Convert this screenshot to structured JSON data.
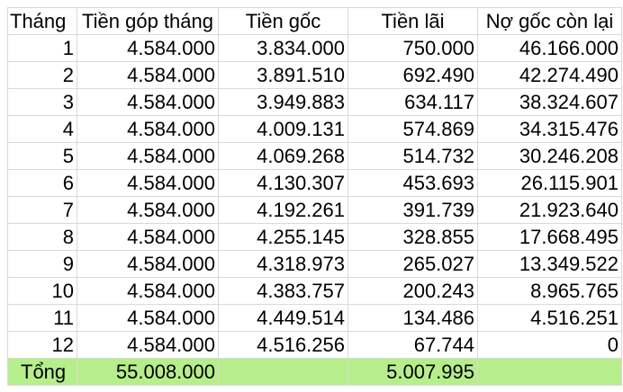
{
  "headers": {
    "month": "Tháng",
    "payment": "Tiền góp tháng",
    "principal": "Tiền gốc",
    "interest": "Tiền lãi",
    "remaining": "Nợ gốc còn lại"
  },
  "rows": [
    {
      "month": "1",
      "payment": "4.584.000",
      "principal": "3.834.000",
      "interest": "750.000",
      "remaining": "46.166.000"
    },
    {
      "month": "2",
      "payment": "4.584.000",
      "principal": "3.891.510",
      "interest": "692.490",
      "remaining": "42.274.490"
    },
    {
      "month": "3",
      "payment": "4.584.000",
      "principal": "3.949.883",
      "interest": "634.117",
      "remaining": "38.324.607"
    },
    {
      "month": "4",
      "payment": "4.584.000",
      "principal": "4.009.131",
      "interest": "574.869",
      "remaining": "34.315.476"
    },
    {
      "month": "5",
      "payment": "4.584.000",
      "principal": "4.069.268",
      "interest": "514.732",
      "remaining": "30.246.208"
    },
    {
      "month": "6",
      "payment": "4.584.000",
      "principal": "4.130.307",
      "interest": "453.693",
      "remaining": "26.115.901"
    },
    {
      "month": "7",
      "payment": "4.584.000",
      "principal": "4.192.261",
      "interest": "391.739",
      "remaining": "21.923.640"
    },
    {
      "month": "8",
      "payment": "4.584.000",
      "principal": "4.255.145",
      "interest": "328.855",
      "remaining": "17.668.495"
    },
    {
      "month": "9",
      "payment": "4.584.000",
      "principal": "4.318.973",
      "interest": "265.027",
      "remaining": "13.349.522"
    },
    {
      "month": "10",
      "payment": "4.584.000",
      "principal": "4.383.757",
      "interest": "200.243",
      "remaining": "8.965.765"
    },
    {
      "month": "11",
      "payment": "4.584.000",
      "principal": "4.449.514",
      "interest": "134.486",
      "remaining": "4.516.251"
    },
    {
      "month": "12",
      "payment": "4.584.000",
      "principal": "4.516.256",
      "interest": "67.744",
      "remaining": "0"
    }
  ],
  "total": {
    "label": "Tổng",
    "payment": "55.008.000",
    "principal": "",
    "interest": "5.007.995",
    "remaining": ""
  },
  "colors": {
    "total_row_background": "#b7ee8c",
    "gridline": "#d9d9d9"
  }
}
